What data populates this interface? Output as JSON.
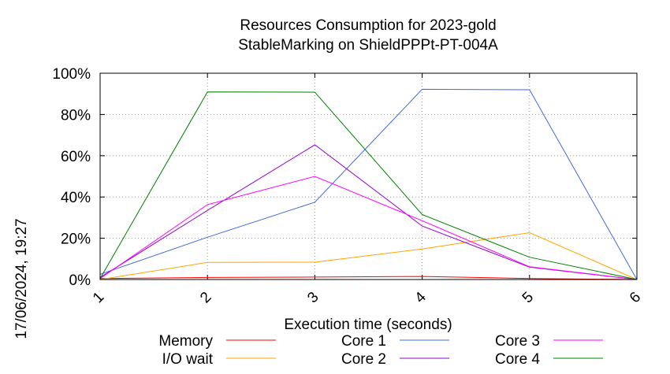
{
  "chart_data": {
    "type": "line",
    "title": [
      "Resources Consumption for 2023-gold",
      "StableMarking on ShieldPPPt-PT-004A"
    ],
    "xlabel": "Execution time (seconds)",
    "ylabel": "",
    "side_label": "17/06/2024, 19:27",
    "x": [
      1,
      2,
      3,
      4,
      5,
      6
    ],
    "xlim": [
      1,
      6
    ],
    "ylim": [
      0,
      100
    ],
    "x_ticks": [
      "1",
      "2",
      "3",
      "4",
      "5",
      "6"
    ],
    "y_ticks": [
      {
        "value": 0,
        "label": "0%"
      },
      {
        "value": 20,
        "label": "20%"
      },
      {
        "value": 40,
        "label": "40%"
      },
      {
        "value": 60,
        "label": "60%"
      },
      {
        "value": 80,
        "label": "80%"
      },
      {
        "value": 100,
        "label": "100%"
      }
    ],
    "grid": true,
    "legend_position": "bottom",
    "series": [
      {
        "name": "Memory",
        "color": "#ff0000",
        "values": [
          0.5,
          1.0,
          1.2,
          1.5,
          0.5,
          0
        ]
      },
      {
        "name": "I/O wait",
        "color": "#ffa500",
        "values": [
          0,
          8.3,
          8.4,
          14.8,
          22.7,
          0
        ]
      },
      {
        "name": "Core 1",
        "color": "#4169e1",
        "values": [
          2.5,
          20.5,
          37.5,
          92.2,
          92.0,
          0
        ]
      },
      {
        "name": "Core 2",
        "color": "#9400d3",
        "values": [
          1.0,
          33.5,
          65.3,
          25.9,
          6.0,
          0
        ]
      },
      {
        "name": "Core 3",
        "color": "#ff00ff",
        "values": [
          0.5,
          36.3,
          50.0,
          28.5,
          6.2,
          0
        ]
      },
      {
        "name": "Core 4",
        "color": "#008000",
        "values": [
          0.5,
          90.9,
          90.8,
          31.5,
          10.8,
          0
        ]
      }
    ]
  }
}
